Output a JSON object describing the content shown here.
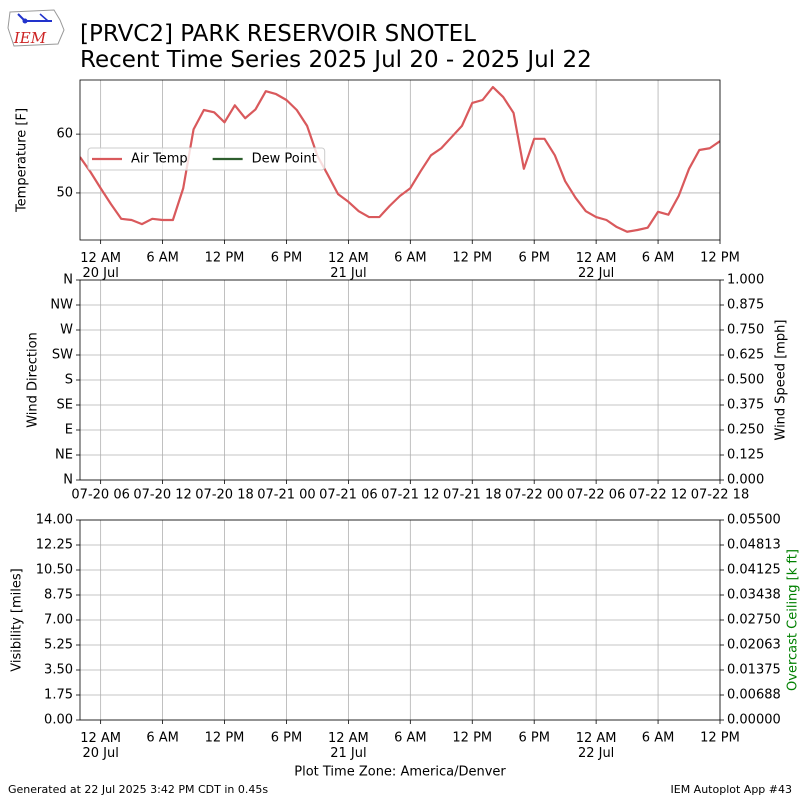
{
  "title": {
    "line1": "[PRVC2] PARK RESERVOIR SNOTEL",
    "line2": "Recent Time Series 2025 Jul 20 - 2025 Jul 22"
  },
  "logo": "IEM",
  "footer": {
    "left": "Generated at 22 Jul 2025 3:42 PM CDT in 0.45s",
    "right": "IEM Autoplot App #43"
  },
  "chart_data": [
    {
      "type": "line",
      "ylabel": "Temperature [F]",
      "grid": true,
      "legend": "center left",
      "xlim": [
        "2025-07-19T22:00",
        "2025-07-22T12:00"
      ],
      "xticks": [
        {
          "value": "2025-07-20T00:00",
          "label": "12 AM\n20 Jul"
        },
        {
          "value": "2025-07-20T06:00",
          "label": "6 AM"
        },
        {
          "value": "2025-07-20T12:00",
          "label": "12 PM"
        },
        {
          "value": "2025-07-20T18:00",
          "label": "6 PM"
        },
        {
          "value": "2025-07-21T00:00",
          "label": "12 AM\n21 Jul"
        },
        {
          "value": "2025-07-21T06:00",
          "label": "6 AM"
        },
        {
          "value": "2025-07-21T12:00",
          "label": "12 PM"
        },
        {
          "value": "2025-07-21T18:00",
          "label": "6 PM"
        },
        {
          "value": "2025-07-22T00:00",
          "label": "12 AM\n22 Jul"
        },
        {
          "value": "2025-07-22T06:00",
          "label": "6 AM"
        },
        {
          "value": "2025-07-22T12:00",
          "label": "12 PM"
        }
      ],
      "ylim": [
        42.0,
        69.2
      ],
      "yticks": [
        50,
        60
      ],
      "x": [
        "2025-07-19T22:00",
        "2025-07-19T23:00",
        "2025-07-20T00:00",
        "2025-07-20T01:00",
        "2025-07-20T02:00",
        "2025-07-20T03:00",
        "2025-07-20T04:00",
        "2025-07-20T05:00",
        "2025-07-20T06:00",
        "2025-07-20T07:00",
        "2025-07-20T08:00",
        "2025-07-20T09:00",
        "2025-07-20T10:00",
        "2025-07-20T11:00",
        "2025-07-20T12:00",
        "2025-07-20T13:00",
        "2025-07-20T14:00",
        "2025-07-20T15:00",
        "2025-07-20T16:00",
        "2025-07-20T17:00",
        "2025-07-20T18:00",
        "2025-07-20T19:00",
        "2025-07-20T20:00",
        "2025-07-20T21:00",
        "2025-07-20T22:00",
        "2025-07-20T23:00",
        "2025-07-21T00:00",
        "2025-07-21T01:00",
        "2025-07-21T02:00",
        "2025-07-21T03:00",
        "2025-07-21T04:00",
        "2025-07-21T05:00",
        "2025-07-21T06:00",
        "2025-07-21T07:00",
        "2025-07-21T08:00",
        "2025-07-21T09:00",
        "2025-07-21T10:00",
        "2025-07-21T11:00",
        "2025-07-21T12:00",
        "2025-07-21T13:00",
        "2025-07-21T14:00",
        "2025-07-21T15:00",
        "2025-07-21T16:00",
        "2025-07-21T17:00",
        "2025-07-21T18:00",
        "2025-07-21T19:00",
        "2025-07-21T20:00",
        "2025-07-21T21:00",
        "2025-07-21T22:00",
        "2025-07-21T23:00",
        "2025-07-22T00:00",
        "2025-07-22T01:00",
        "2025-07-22T02:00",
        "2025-07-22T03:00",
        "2025-07-22T04:00",
        "2025-07-22T05:00",
        "2025-07-22T06:00",
        "2025-07-22T07:00",
        "2025-07-22T08:00",
        "2025-07-22T09:00",
        "2025-07-22T10:00",
        "2025-07-22T11:00",
        "2025-07-22T12:00"
      ],
      "series": [
        {
          "name": "Air Temp",
          "color": "#d9595c",
          "values": [
            56.1,
            53.6,
            50.8,
            48.1,
            45.6,
            45.4,
            44.7,
            45.6,
            45.4,
            45.4,
            50.8,
            60.8,
            64.1,
            63.7,
            62.0,
            64.9,
            62.7,
            64.2,
            67.3,
            66.8,
            65.8,
            64.1,
            61.4,
            56.3,
            53.1,
            49.8,
            48.5,
            46.9,
            45.9,
            45.9,
            47.8,
            49.5,
            50.8,
            53.7,
            56.4,
            57.6,
            59.5,
            61.4,
            65.3,
            65.8,
            68.0,
            66.3,
            63.6,
            54.1,
            59.2,
            59.2,
            56.4,
            52.0,
            49.2,
            46.9,
            45.9,
            45.4,
            44.2,
            43.4,
            43.7,
            44.1,
            46.8,
            46.3,
            49.5,
            54.1,
            57.3,
            57.6,
            58.8
          ]
        },
        {
          "name": "Dew Point",
          "color": "#2e5e2e",
          "values": [
            null,
            null,
            null,
            null,
            null,
            null,
            null,
            null,
            null,
            null,
            null,
            null,
            null,
            null,
            null,
            null,
            null,
            null,
            null,
            null,
            null,
            null,
            null,
            null,
            null,
            null,
            null,
            null,
            null,
            null,
            null,
            null,
            null,
            null,
            null,
            null,
            null,
            null,
            null,
            null,
            null,
            null,
            null,
            null,
            null,
            null,
            null,
            null,
            null,
            null,
            null,
            null,
            null,
            null,
            null,
            null,
            null,
            null,
            null,
            null,
            null,
            null,
            null
          ]
        }
      ]
    },
    {
      "type": "line",
      "ylabel": "Wind Direction",
      "y2label": "Wind Speed [mph]",
      "grid": true,
      "xlim": [
        "2025-07-20T04:00",
        "2025-07-22T18:00"
      ],
      "xticks": [
        {
          "value": "2025-07-20T06:00",
          "label": "07-20 06"
        },
        {
          "value": "2025-07-20T12:00",
          "label": "07-20 12"
        },
        {
          "value": "2025-07-20T18:00",
          "label": "07-20 18"
        },
        {
          "value": "2025-07-21T00:00",
          "label": "07-21 00"
        },
        {
          "value": "2025-07-21T06:00",
          "label": "07-21 06"
        },
        {
          "value": "2025-07-21T12:00",
          "label": "07-21 12"
        },
        {
          "value": "2025-07-21T18:00",
          "label": "07-21 18"
        },
        {
          "value": "2025-07-22T00:00",
          "label": "07-22 00"
        },
        {
          "value": "2025-07-22T06:00",
          "label": "07-22 06"
        },
        {
          "value": "2025-07-22T12:00",
          "label": "07-22 12"
        },
        {
          "value": "2025-07-22T18:00",
          "label": "07-22 18"
        }
      ],
      "ylim": [
        0,
        360
      ],
      "yticks": [
        {
          "value": 0,
          "label": "N"
        },
        {
          "value": 45,
          "label": "NE"
        },
        {
          "value": 90,
          "label": "E"
        },
        {
          "value": 135,
          "label": "SE"
        },
        {
          "value": 180,
          "label": "S"
        },
        {
          "value": 225,
          "label": "SW"
        },
        {
          "value": 270,
          "label": "W"
        },
        {
          "value": 315,
          "label": "NW"
        },
        {
          "value": 360,
          "label": "N"
        }
      ],
      "y2lim": [
        0,
        1
      ],
      "y2ticks": [
        {
          "value": 0,
          "label": "0.000"
        },
        {
          "value": 0.125,
          "label": "0.125"
        },
        {
          "value": 0.25,
          "label": "0.250"
        },
        {
          "value": 0.375,
          "label": "0.375"
        },
        {
          "value": 0.5,
          "label": "0.500"
        },
        {
          "value": 0.625,
          "label": "0.625"
        },
        {
          "value": 0.75,
          "label": "0.750"
        },
        {
          "value": 0.875,
          "label": "0.875"
        },
        {
          "value": 1,
          "label": "1.000"
        }
      ]
    },
    {
      "type": "line",
      "ylabel": "Visibility [miles]",
      "y2label": "Overcast Ceiling [k ft]",
      "y2label_color": "#008000",
      "grid": true,
      "xlabel": "Plot Time Zone: America/Denver",
      "xlim": [
        "2025-07-19T22:00",
        "2025-07-22T12:00"
      ],
      "xticks": [
        {
          "value": "2025-07-20T00:00",
          "label": "12 AM\n20 Jul"
        },
        {
          "value": "2025-07-20T06:00",
          "label": "6 AM"
        },
        {
          "value": "2025-07-20T12:00",
          "label": "12 PM"
        },
        {
          "value": "2025-07-20T18:00",
          "label": "6 PM"
        },
        {
          "value": "2025-07-21T00:00",
          "label": "12 AM\n21 Jul"
        },
        {
          "value": "2025-07-21T06:00",
          "label": "6 AM"
        },
        {
          "value": "2025-07-21T12:00",
          "label": "12 PM"
        },
        {
          "value": "2025-07-21T18:00",
          "label": "6 PM"
        },
        {
          "value": "2025-07-22T00:00",
          "label": "12 AM\n22 Jul"
        },
        {
          "value": "2025-07-22T06:00",
          "label": "6 AM"
        },
        {
          "value": "2025-07-22T12:00",
          "label": "12 PM"
        }
      ],
      "ylim": [
        0,
        14
      ],
      "yticks": [
        {
          "value": 0,
          "label": "0.00"
        },
        {
          "value": 1.75,
          "label": "1.75"
        },
        {
          "value": 3.5,
          "label": "3.50"
        },
        {
          "value": 5.25,
          "label": "5.25"
        },
        {
          "value": 7,
          "label": "7.00"
        },
        {
          "value": 8.75,
          "label": "8.75"
        },
        {
          "value": 10.5,
          "label": "10.50"
        },
        {
          "value": 12.25,
          "label": "12.25"
        },
        {
          "value": 14,
          "label": "14.00"
        }
      ],
      "y2lim": [
        0,
        0.055
      ],
      "y2ticks": [
        {
          "value": 0,
          "label": "0.00000"
        },
        {
          "value": 0.006875,
          "label": "0.00688"
        },
        {
          "value": 0.01375,
          "label": "0.01375"
        },
        {
          "value": 0.020625,
          "label": "0.02063"
        },
        {
          "value": 0.0275,
          "label": "0.02750"
        },
        {
          "value": 0.034375,
          "label": "0.03438"
        },
        {
          "value": 0.04125,
          "label": "0.04125"
        },
        {
          "value": 0.048125,
          "label": "0.04813"
        },
        {
          "value": 0.055,
          "label": "0.05500"
        }
      ]
    }
  ]
}
